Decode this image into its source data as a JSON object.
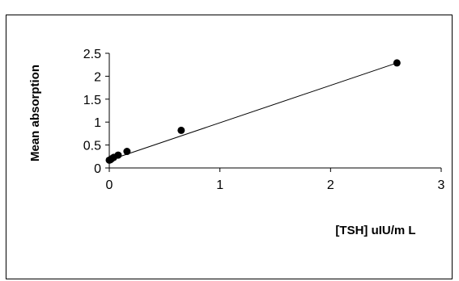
{
  "chart_data": {
    "type": "scatter",
    "title": "",
    "xlabel": "[TSH] uIU/m L",
    "ylabel": "Mean  absorption",
    "xlim": [
      0,
      3
    ],
    "ylim": [
      0,
      2.5
    ],
    "x_ticks": [
      0,
      1,
      2,
      3
    ],
    "y_ticks": [
      0,
      0.5,
      1,
      1.5,
      2,
      2.5
    ],
    "x_tick_labels": [
      "0",
      "1",
      "2",
      "3"
    ],
    "y_tick_labels": [
      "0",
      "0.5",
      "1",
      "1.5",
      "2",
      "2.5"
    ],
    "grid": false,
    "legend": "none",
    "series": [
      {
        "marker_color": "#000000",
        "points": [
          {
            "x": 0.0,
            "y": 0.17
          },
          {
            "x": 0.01,
            "y": 0.18
          },
          {
            "x": 0.02,
            "y": 0.2
          },
          {
            "x": 0.04,
            "y": 0.23
          },
          {
            "x": 0.08,
            "y": 0.28
          },
          {
            "x": 0.16,
            "y": 0.36
          },
          {
            "x": 0.65,
            "y": 0.82
          },
          {
            "x": 2.6,
            "y": 2.29
          }
        ]
      }
    ],
    "trendline": {
      "type": "linear",
      "from": {
        "x": 0,
        "y": 0.17
      },
      "to": {
        "x": 2.6,
        "y": 2.29
      },
      "color": "#000000"
    }
  }
}
